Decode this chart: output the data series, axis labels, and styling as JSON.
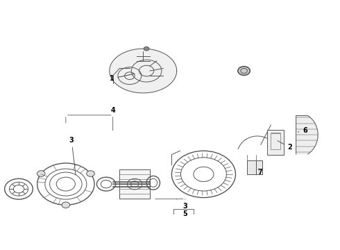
{
  "background_color": "#ffffff",
  "line_color": "#555555",
  "text_color": "#000000",
  "fig_width": 4.9,
  "fig_height": 3.6,
  "dpi": 100
}
